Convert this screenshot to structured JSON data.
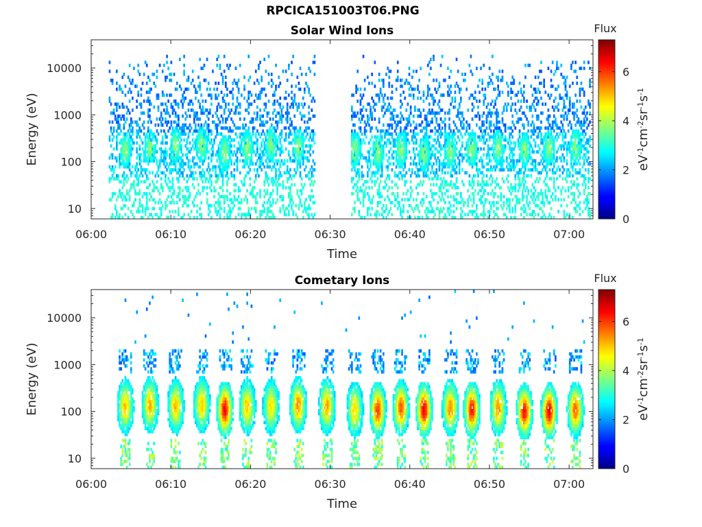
{
  "figure": {
    "title": "RPCICA151003T06.PNG"
  },
  "chart_data": [
    {
      "type": "heatmap",
      "title": "Solar Wind Ions",
      "xlabel": "Time",
      "ylabel": "Energy (eV)",
      "x_ticks": [
        "06:00",
        "06:10",
        "06:20",
        "06:30",
        "06:40",
        "06:50",
        "07:00"
      ],
      "xlim_minutes": [
        0,
        63
      ],
      "y_scale": "log",
      "y_ticks": [
        10,
        100,
        1000,
        10000
      ],
      "ylim": [
        6,
        40000
      ],
      "colorbar": {
        "title": "Flux",
        "label": "eV^-1 cm^-2 sr^-1 s^-1",
        "ticks": [
          0,
          2,
          4,
          6
        ],
        "range": [
          0,
          7.3
        ],
        "colormap": "jet"
      },
      "data_gap_minutes": [
        28.0,
        32.5
      ],
      "bursts": [
        {
          "t": 4.2,
          "e": 180
        },
        {
          "t": 7.3,
          "e": 200
        },
        {
          "t": 10.5,
          "e": 220
        },
        {
          "t": 13.8,
          "e": 230
        },
        {
          "t": 16.7,
          "e": 160
        },
        {
          "t": 19.5,
          "e": 200
        },
        {
          "t": 22.5,
          "e": 230
        },
        {
          "t": 25.9,
          "e": 210
        },
        {
          "t": 29.5,
          "e": 190
        },
        {
          "t": 33.0,
          "e": 180
        },
        {
          "t": 35.9,
          "e": 160
        },
        {
          "t": 38.8,
          "e": 180
        },
        {
          "t": 41.7,
          "e": 150
        },
        {
          "t": 45.0,
          "e": 170
        },
        {
          "t": 47.7,
          "e": 190
        },
        {
          "t": 51.0,
          "e": 200
        },
        {
          "t": 54.3,
          "e": 180
        },
        {
          "t": 57.4,
          "e": 200
        },
        {
          "t": 60.7,
          "e": 210
        }
      ]
    },
    {
      "type": "heatmap",
      "title": "Cometary Ions",
      "xlabel": "Time",
      "ylabel": "Energy (eV)",
      "x_ticks": [
        "06:00",
        "06:10",
        "06:20",
        "06:30",
        "06:40",
        "06:50",
        "07:00"
      ],
      "xlim_minutes": [
        0,
        63
      ],
      "y_scale": "log",
      "y_ticks": [
        10,
        100,
        1000,
        10000
      ],
      "ylim": [
        6,
        40000
      ],
      "colorbar": {
        "title": "Flux",
        "label": "eV^-1 cm^-2 sr^-1 s^-1",
        "ticks": [
          0,
          2,
          4,
          6
        ],
        "range": [
          0,
          7.3
        ],
        "colormap": "jet"
      },
      "bursts": [
        {
          "t": 4.2,
          "e": 130,
          "peak": 5.0
        },
        {
          "t": 7.3,
          "e": 140,
          "peak": 5.2
        },
        {
          "t": 10.5,
          "e": 130,
          "peak": 5.1
        },
        {
          "t": 13.8,
          "e": 140,
          "peak": 5.0
        },
        {
          "t": 16.7,
          "e": 110,
          "peak": 6.4
        },
        {
          "t": 19.5,
          "e": 130,
          "peak": 5.0
        },
        {
          "t": 22.5,
          "e": 130,
          "peak": 4.8
        },
        {
          "t": 25.9,
          "e": 140,
          "peak": 5.4
        },
        {
          "t": 29.5,
          "e": 130,
          "peak": 5.2
        },
        {
          "t": 33.0,
          "e": 110,
          "peak": 4.9
        },
        {
          "t": 35.9,
          "e": 110,
          "peak": 6.0
        },
        {
          "t": 38.8,
          "e": 120,
          "peak": 5.7
        },
        {
          "t": 41.7,
          "e": 110,
          "peak": 6.5
        },
        {
          "t": 45.0,
          "e": 120,
          "peak": 5.4
        },
        {
          "t": 47.7,
          "e": 110,
          "peak": 6.3
        },
        {
          "t": 51.0,
          "e": 120,
          "peak": 5.4
        },
        {
          "t": 54.3,
          "e": 100,
          "peak": 6.3
        },
        {
          "t": 57.4,
          "e": 100,
          "peak": 6.5
        },
        {
          "t": 60.7,
          "e": 110,
          "peak": 5.7
        }
      ]
    }
  ]
}
